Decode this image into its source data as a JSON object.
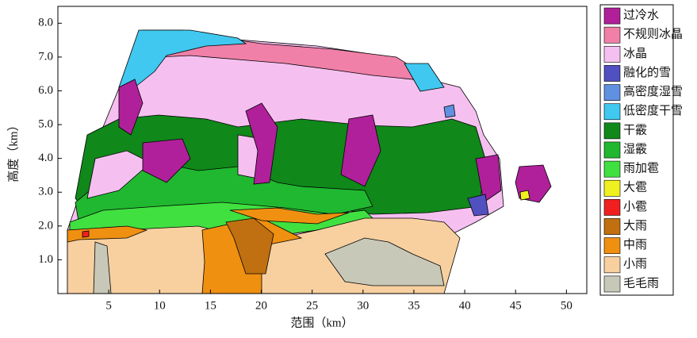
{
  "chart_data": {
    "type": "categorical-field",
    "x_label": "范围（km）",
    "y_label": "高度（km）",
    "xlim": [
      0,
      52
    ],
    "xticks": [
      5,
      10,
      15,
      20,
      25,
      30,
      35,
      40,
      45,
      50
    ],
    "ylim": [
      0,
      8.5
    ],
    "yticks": [
      {
        "value": 1,
        "label": "1.0"
      },
      {
        "value": 2,
        "label": "2.0"
      },
      {
        "value": 3,
        "label": "3.0"
      },
      {
        "value": 4,
        "label": "4.0"
      },
      {
        "value": 5,
        "label": "5.0"
      },
      {
        "value": 6,
        "label": "6.0"
      },
      {
        "value": 7,
        "label": "7.0"
      },
      {
        "value": 8,
        "label": "8.0"
      }
    ],
    "categories": [
      "过冷水",
      "不规则冰晶",
      "冰晶",
      "融化的雪",
      "高密度湿雪",
      "低密度干雪",
      "干霰",
      "湿霰",
      "雨加雹",
      "大雹",
      "小雹",
      "大雨",
      "中雨",
      "小雨",
      "毛毛雨"
    ],
    "colors": [
      "#b0209a",
      "#f080a8",
      "#f5c0f0",
      "#5050c0",
      "#6090e0",
      "#40c8f0",
      "#10881a",
      "#20b830",
      "#40e040",
      "#f0f020",
      "#f02020",
      "#c07010",
      "#f09010",
      "#f8d0a0",
      "#c8c8b8"
    ]
  }
}
